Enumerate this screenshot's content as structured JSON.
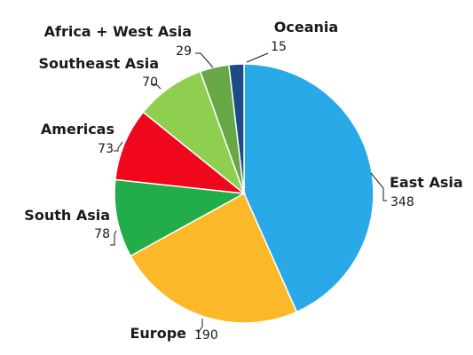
{
  "chart_data": {
    "type": "pie",
    "title": "",
    "start": "12 o'clock",
    "direction": "clockwise",
    "slices": [
      {
        "label": "East Asia",
        "value": 348,
        "color": "#2aa9e9"
      },
      {
        "label": "Europe",
        "value": 190,
        "color": "#fbb829"
      },
      {
        "label": "South Asia",
        "value": 78,
        "color": "#22ad4a"
      },
      {
        "label": "Americas",
        "value": 73,
        "color": "#f0071b"
      },
      {
        "label": "Southeast Asia",
        "value": 70,
        "color": "#8ecf4f"
      },
      {
        "label": "Africa + West Asia",
        "value": 29,
        "color": "#67a745"
      },
      {
        "label": "Oceania",
        "value": 15,
        "color": "#1e4a85"
      }
    ]
  }
}
